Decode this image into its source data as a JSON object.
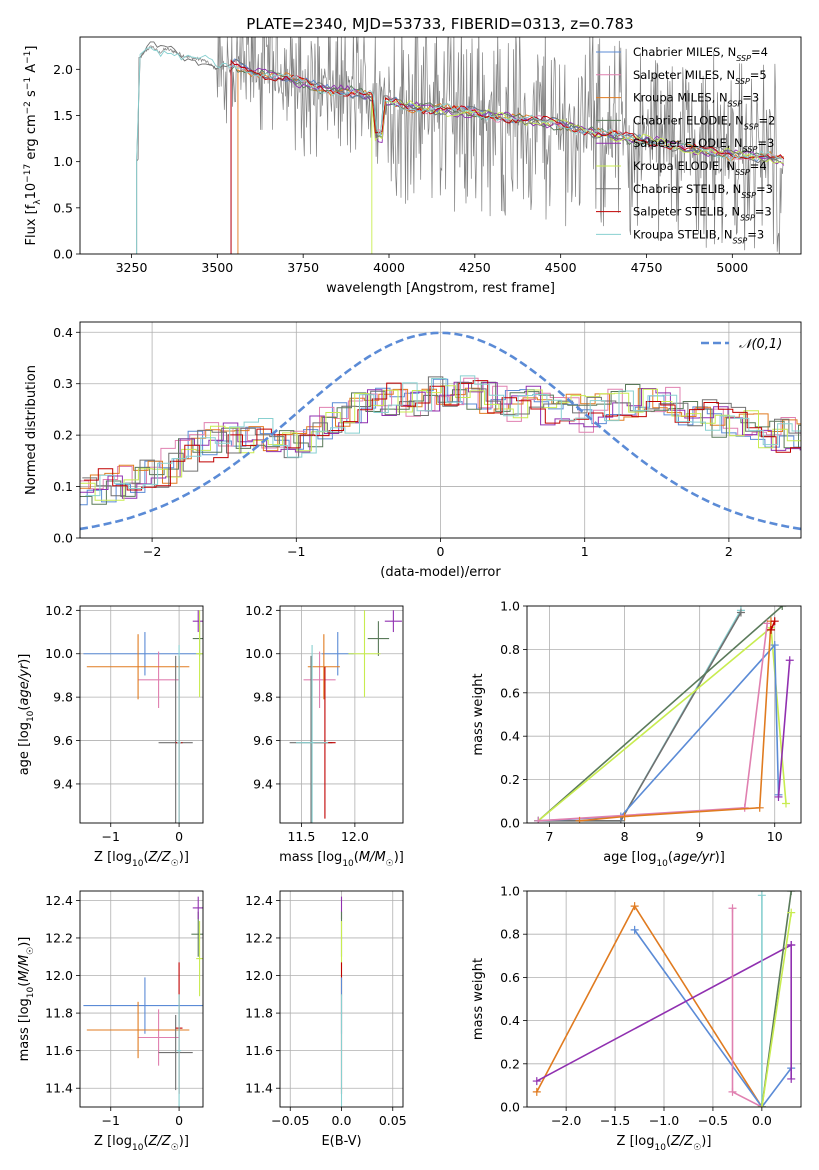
{
  "figure_title": "PLATE=2340, MJD=53733, FIBERID=0313, z=0.783",
  "colors": {
    "Chabrier MILES": "#5b8bd6",
    "Salpeter MILES": "#e080b0",
    "Kroupa MILES": "#e07b20",
    "Chabrier ELODIE": "#5a7a5a",
    "Salpeter ELODIE": "#9030b0",
    "Kroupa ELODIE": "#c8ec50",
    "Chabrier STELIB": "#707070",
    "Salpeter STELIB": "#c00000",
    "Kroupa STELIB": "#88d0d0",
    "normal": "#5b8bd6"
  },
  "chart_data": [
    {
      "id": "spectrum",
      "type": "line",
      "title": "PLATE=2340, MJD=53733, FIBERID=0313, z=0.783",
      "xlabel": "wavelength [Angstrom, rest frame]",
      "ylabel": "Flux [f_λ10^-17 erg cm^-2 s^-1 A^-1]",
      "xlim": [
        3100,
        5200
      ],
      "ylim": [
        0,
        2.35
      ],
      "xticks": [
        3250,
        3500,
        3750,
        4000,
        4250,
        4500,
        4750,
        5000
      ],
      "yticks": [
        0.0,
        0.5,
        1.0,
        1.5,
        2.0
      ],
      "legend_position": "upper-right",
      "legend": [
        {
          "base": "Chabrier MILES, N",
          "n": "4"
        },
        {
          "base": "Salpeter MILES, N",
          "n": "5"
        },
        {
          "base": "Kroupa MILES, N",
          "n": "3"
        },
        {
          "base": "Chabrier ELODIE, N",
          "n": "2"
        },
        {
          "base": "Salpeter ELODIE, N",
          "n": "3"
        },
        {
          "base": "Kroupa ELODIE, N",
          "n": "4"
        },
        {
          "base": "Chabrier STELIB, N",
          "n": "3"
        },
        {
          "base": "Salpeter STELIB, N",
          "n": "3"
        },
        {
          "base": "Kroupa STELIB, N",
          "n": "3"
        }
      ],
      "legend_subscript": "SSP",
      "model_continuum": {
        "x": [
          3270,
          3290,
          3310,
          3330,
          3350,
          3370,
          3400,
          3430,
          3460,
          3500,
          3550,
          3600,
          3700,
          3800,
          3900,
          3950,
          4000,
          4050,
          4100,
          4200,
          4300,
          4400,
          4500,
          4600,
          4700,
          4800,
          4900,
          5000,
          5100,
          5150
        ],
        "y": [
          2.1,
          2.2,
          2.25,
          2.18,
          2.22,
          2.2,
          2.15,
          2.12,
          2.1,
          2.0,
          2.05,
          1.98,
          1.9,
          1.8,
          1.75,
          1.7,
          1.65,
          1.6,
          1.58,
          1.55,
          1.5,
          1.45,
          1.4,
          1.32,
          1.25,
          1.2,
          1.12,
          1.08,
          1.05,
          1.02
        ]
      },
      "model_starts": {
        "Chabrier MILES": 3540,
        "Salpeter MILES": 3540,
        "Kroupa MILES": 3560,
        "Chabrier ELODIE": 3540,
        "Salpeter ELODIE": 3540,
        "Kroupa ELODIE": 3950,
        "Chabrier STELIB": 3265,
        "Salpeter STELIB": 3540,
        "Kroupa STELIB": 3265
      }
    },
    {
      "id": "residuals",
      "type": "histogram",
      "xlabel": "(data-model)/error",
      "ylabel": "Normed distribution",
      "xlim": [
        -2.5,
        2.5
      ],
      "ylim": [
        0,
        0.42
      ],
      "xticks": [
        -2,
        -1,
        0,
        1,
        2
      ],
      "yticks": [
        0.0,
        0.1,
        0.2,
        0.3,
        0.4
      ],
      "grid": true,
      "legend_position": "upper-right",
      "legend_label": "𝒩(0,1)",
      "bin_width": 0.1,
      "mean_profile": [
        0.09,
        0.1,
        0.1,
        0.11,
        0.12,
        0.13,
        0.14,
        0.16,
        0.18,
        0.19,
        0.2,
        0.2,
        0.21,
        0.2,
        0.19,
        0.2,
        0.21,
        0.22,
        0.23,
        0.25,
        0.26,
        0.27,
        0.27,
        0.27,
        0.28,
        0.28,
        0.29,
        0.28,
        0.27,
        0.27,
        0.26,
        0.26,
        0.25,
        0.25,
        0.25,
        0.24,
        0.25,
        0.26,
        0.27,
        0.28,
        0.27,
        0.26,
        0.25,
        0.24,
        0.23,
        0.22,
        0.22,
        0.21,
        0.2,
        0.2,
        0.19,
        0.18,
        0.17,
        0.16,
        0.16,
        0.15,
        0.14,
        0.13,
        0.12,
        0.11,
        0.1,
        0.1,
        0.09
      ]
    },
    {
      "id": "age-vs-Z",
      "type": "scatter",
      "xlabel": "Z [log10(Z/Z☉)]",
      "ylabel": "age  [log10(age/yr)]",
      "xlim": [
        -1.45,
        0.35
      ],
      "ylim": [
        9.22,
        10.22
      ],
      "xticks": [
        -1,
        0
      ],
      "yticks": [
        9.4,
        9.6,
        9.8,
        10.0,
        10.2
      ],
      "grid": true,
      "points": [
        {
          "model": "Chabrier MILES",
          "x": -0.5,
          "xerr": 0.9,
          "y": 10.0,
          "yerr": 0.1
        },
        {
          "model": "Salpeter MILES",
          "x": -0.3,
          "xerr": 0.3,
          "y": 9.88,
          "yerr": 0.13
        },
        {
          "model": "Kroupa MILES",
          "x": -0.6,
          "xerr": 0.75,
          "y": 9.94,
          "yerr": 0.15
        },
        {
          "model": "Chabrier ELODIE",
          "x": 0.3,
          "xerr": 0.1,
          "y": 10.07,
          "yerr": 0.08
        },
        {
          "model": "Salpeter ELODIE",
          "x": 0.28,
          "xerr": 0.08,
          "y": 10.15,
          "yerr": 0.05
        },
        {
          "model": "Kroupa ELODIE",
          "x": 0.3,
          "xerr": 0.05,
          "y": 10.0,
          "yerr": 0.2
        },
        {
          "model": "Chabrier STELIB",
          "x": -0.05,
          "xerr": 0.25,
          "y": 9.59,
          "yerr": 0.4
        },
        {
          "model": "Salpeter STELIB",
          "x": 0.0,
          "xerr": 0.05,
          "y": 9.59,
          "yerr": 0.4
        },
        {
          "model": "Kroupa STELIB",
          "x": 0.0,
          "xerr": 0.03,
          "y": 9.59,
          "yerr": 0.45
        }
      ]
    },
    {
      "id": "age-vs-mass",
      "type": "scatter",
      "xlabel": "mass [log10(M/M☉)]",
      "ylabel": "",
      "xlim": [
        11.3,
        12.45
      ],
      "ylim": [
        9.22,
        10.22
      ],
      "xticks": [
        11.5,
        12.0
      ],
      "yticks": [
        9.4,
        9.6,
        9.8,
        10.0,
        10.2
      ],
      "grid": true,
      "points": [
        {
          "model": "Chabrier MILES",
          "x": 11.84,
          "xerr": 0.15,
          "y": 10.0,
          "yerr": 0.1
        },
        {
          "model": "Salpeter MILES",
          "x": 11.67,
          "xerr": 0.15,
          "y": 9.88,
          "yerr": 0.13
        },
        {
          "model": "Kroupa MILES",
          "x": 11.71,
          "xerr": 0.15,
          "y": 9.94,
          "yerr": 0.15
        },
        {
          "model": "Chabrier ELODIE",
          "x": 12.22,
          "xerr": 0.1,
          "y": 10.07,
          "yerr": 0.08
        },
        {
          "model": "Salpeter ELODIE",
          "x": 12.36,
          "xerr": 0.08,
          "y": 10.15,
          "yerr": 0.05
        },
        {
          "model": "Kroupa ELODIE",
          "x": 12.09,
          "xerr": 0.15,
          "y": 10.0,
          "yerr": 0.2
        },
        {
          "model": "Chabrier STELIB",
          "x": 11.59,
          "xerr": 0.2,
          "y": 9.59,
          "yerr": 0.4
        },
        {
          "model": "Salpeter STELIB",
          "x": 11.72,
          "xerr": 0.1,
          "y": 9.59,
          "yerr": 0.35
        },
        {
          "model": "Kroupa STELIB",
          "x": 11.6,
          "xerr": 0.15,
          "y": 9.59,
          "yerr": 0.45
        }
      ]
    },
    {
      "id": "weight-vs-age",
      "type": "line",
      "xlabel": "age  [log10(age/yr)]",
      "ylabel": "mass weight",
      "xlim": [
        6.7,
        10.35
      ],
      "ylim": [
        0,
        1.0
      ],
      "xticks": [
        7,
        8,
        9,
        10
      ],
      "yticks": [
        0.0,
        0.2,
        0.4,
        0.6,
        0.8,
        1.0
      ],
      "grid": true,
      "series": [
        {
          "model": "Kroupa STELIB",
          "x": [
            6.85,
            7.95,
            9.55
          ],
          "y": [
            0.01,
            0.01,
            0.98
          ]
        },
        {
          "model": "Chabrier STELIB",
          "x": [
            6.85,
            7.95,
            9.55
          ],
          "y": [
            0.01,
            0.01,
            0.97
          ]
        },
        {
          "model": "Chabrier ELODIE",
          "x": [
            6.85,
            10.1
          ],
          "y": [
            0.01,
            1.0
          ]
        },
        {
          "model": "Kroupa ELODIE",
          "x": [
            6.85,
            9.95,
            10.15
          ],
          "y": [
            0.01,
            0.9,
            0.09
          ]
        },
        {
          "model": "Chabrier MILES",
          "x": [
            6.85,
            7.95,
            10.0,
            10.05
          ],
          "y": [
            0.01,
            0.03,
            0.82,
            0.13
          ]
        },
        {
          "model": "Salpeter MILES",
          "x": [
            6.85,
            9.6,
            9.9
          ],
          "y": [
            0.01,
            0.07,
            0.92
          ]
        },
        {
          "model": "Kroupa MILES",
          "x": [
            7.4,
            8.0,
            9.8,
            9.95
          ],
          "y": [
            0.01,
            0.03,
            0.07,
            0.93
          ]
        },
        {
          "model": "Salpeter ELODIE",
          "x": [
            10.05,
            10.2
          ],
          "y": [
            0.12,
            0.75
          ]
        },
        {
          "model": "Salpeter STELIB",
          "x": [
            9.95,
            10.0
          ],
          "y": [
            0.89,
            0.93
          ]
        }
      ]
    },
    {
      "id": "mass-vs-Z",
      "type": "scatter",
      "xlabel": "Z [log10(Z/Z☉)]",
      "ylabel": "mass [log10(M/M☉)]",
      "xlim": [
        -1.45,
        0.35
      ],
      "ylim": [
        11.3,
        12.45
      ],
      "xticks": [
        -1,
        0
      ],
      "yticks": [
        11.4,
        11.6,
        11.8,
        12.0,
        12.2,
        12.4
      ],
      "grid": true,
      "points": [
        {
          "model": "Chabrier MILES",
          "x": -0.5,
          "xerr": 0.9,
          "y": 11.84,
          "yerr": 0.15
        },
        {
          "model": "Salpeter MILES",
          "x": -0.3,
          "xerr": 0.3,
          "y": 11.67,
          "yerr": 0.15
        },
        {
          "model": "Kroupa MILES",
          "x": -0.6,
          "xerr": 0.75,
          "y": 11.71,
          "yerr": 0.15
        },
        {
          "model": "Chabrier ELODIE",
          "x": 0.28,
          "xerr": 0.1,
          "y": 12.22,
          "yerr": 0.12
        },
        {
          "model": "Salpeter ELODIE",
          "x": 0.28,
          "xerr": 0.08,
          "y": 12.36,
          "yerr": 0.06
        },
        {
          "model": "Kroupa ELODIE",
          "x": 0.3,
          "xerr": 0.05,
          "y": 12.09,
          "yerr": 0.2
        },
        {
          "model": "Chabrier STELIB",
          "x": -0.05,
          "xerr": 0.25,
          "y": 11.59,
          "yerr": 0.2
        },
        {
          "model": "Salpeter STELIB",
          "x": 0.0,
          "xerr": 0.05,
          "y": 11.72,
          "yerr": 0.35
        },
        {
          "model": "Kroupa STELIB",
          "x": 0.0,
          "xerr": 0.03,
          "y": 11.6,
          "yerr": 0.3
        }
      ]
    },
    {
      "id": "mass-vs-EBV",
      "type": "scatter",
      "xlabel": "E(B-V)",
      "ylabel": "",
      "xlim": [
        -0.06,
        0.06
      ],
      "ylim": [
        11.3,
        12.45
      ],
      "xticks": [
        -0.05,
        0.0,
        0.05
      ],
      "yticks": [
        11.4,
        11.6,
        11.8,
        12.0,
        12.2,
        12.4
      ],
      "grid": true,
      "points": [
        {
          "model": "Salpeter ELODIE",
          "x": 0.0,
          "xerr": 0.0,
          "y": 12.36,
          "yerr": 0.06
        },
        {
          "model": "Chabrier ELODIE",
          "x": 0.0,
          "xerr": 0.0,
          "y": 12.22,
          "yerr": 0.12
        },
        {
          "model": "Kroupa ELODIE",
          "x": 0.0,
          "xerr": 0.0,
          "y": 12.09,
          "yerr": 0.2
        },
        {
          "model": "Salpeter STELIB",
          "x": 0.0,
          "xerr": 0.0,
          "y": 11.72,
          "yerr": 0.35
        },
        {
          "model": "Chabrier MILES",
          "x": 0.0,
          "xerr": 0.0,
          "y": 11.84,
          "yerr": 0.15
        },
        {
          "model": "Kroupa STELIB",
          "x": 0.0,
          "xerr": 0.0,
          "y": 11.6,
          "yerr": 0.3
        }
      ]
    },
    {
      "id": "weight-vs-Z",
      "type": "line",
      "xlabel": "Z [log10(Z/Z☉)]",
      "ylabel": "mass weight",
      "xlim": [
        -2.4,
        0.4
      ],
      "ylim": [
        0,
        1.0
      ],
      "xticks": [
        -2.0,
        -1.5,
        -1.0,
        -0.5,
        0.0
      ],
      "yticks": [
        0.0,
        0.2,
        0.4,
        0.6,
        0.8,
        1.0
      ],
      "grid": true,
      "series": [
        {
          "model": "Kroupa MILES",
          "x": [
            -2.3,
            -1.3,
            0.0
          ],
          "y": [
            0.07,
            0.93,
            0.0
          ]
        },
        {
          "model": "Chabrier MILES",
          "x": [
            -1.3,
            0.0,
            0.3
          ],
          "y": [
            0.82,
            0.0,
            0.18
          ]
        },
        {
          "model": "Salpeter ELODIE",
          "x": [
            -2.3,
            0.3
          ],
          "y": [
            0.12,
            0.75
          ]
        },
        {
          "model": "Salpeter MILES",
          "x": [
            -0.3,
            -0.3,
            0.0
          ],
          "y": [
            0.92,
            0.07,
            0.0
          ]
        },
        {
          "model": "Kroupa STELIB",
          "x": [
            0.0,
            0.0
          ],
          "y": [
            0.0,
            0.98
          ]
        },
        {
          "model": "Chabrier ELODIE",
          "x": [
            0.0,
            0.3
          ],
          "y": [
            0.0,
            1.0
          ]
        },
        {
          "model": "Kroupa ELODIE",
          "x": [
            0.0,
            0.3
          ],
          "y": [
            0.0,
            0.9
          ]
        },
        {
          "model": "Salpeter ELODIE",
          "x": [
            0.3,
            0.3
          ],
          "y": [
            0.75,
            0.13
          ]
        }
      ]
    }
  ]
}
